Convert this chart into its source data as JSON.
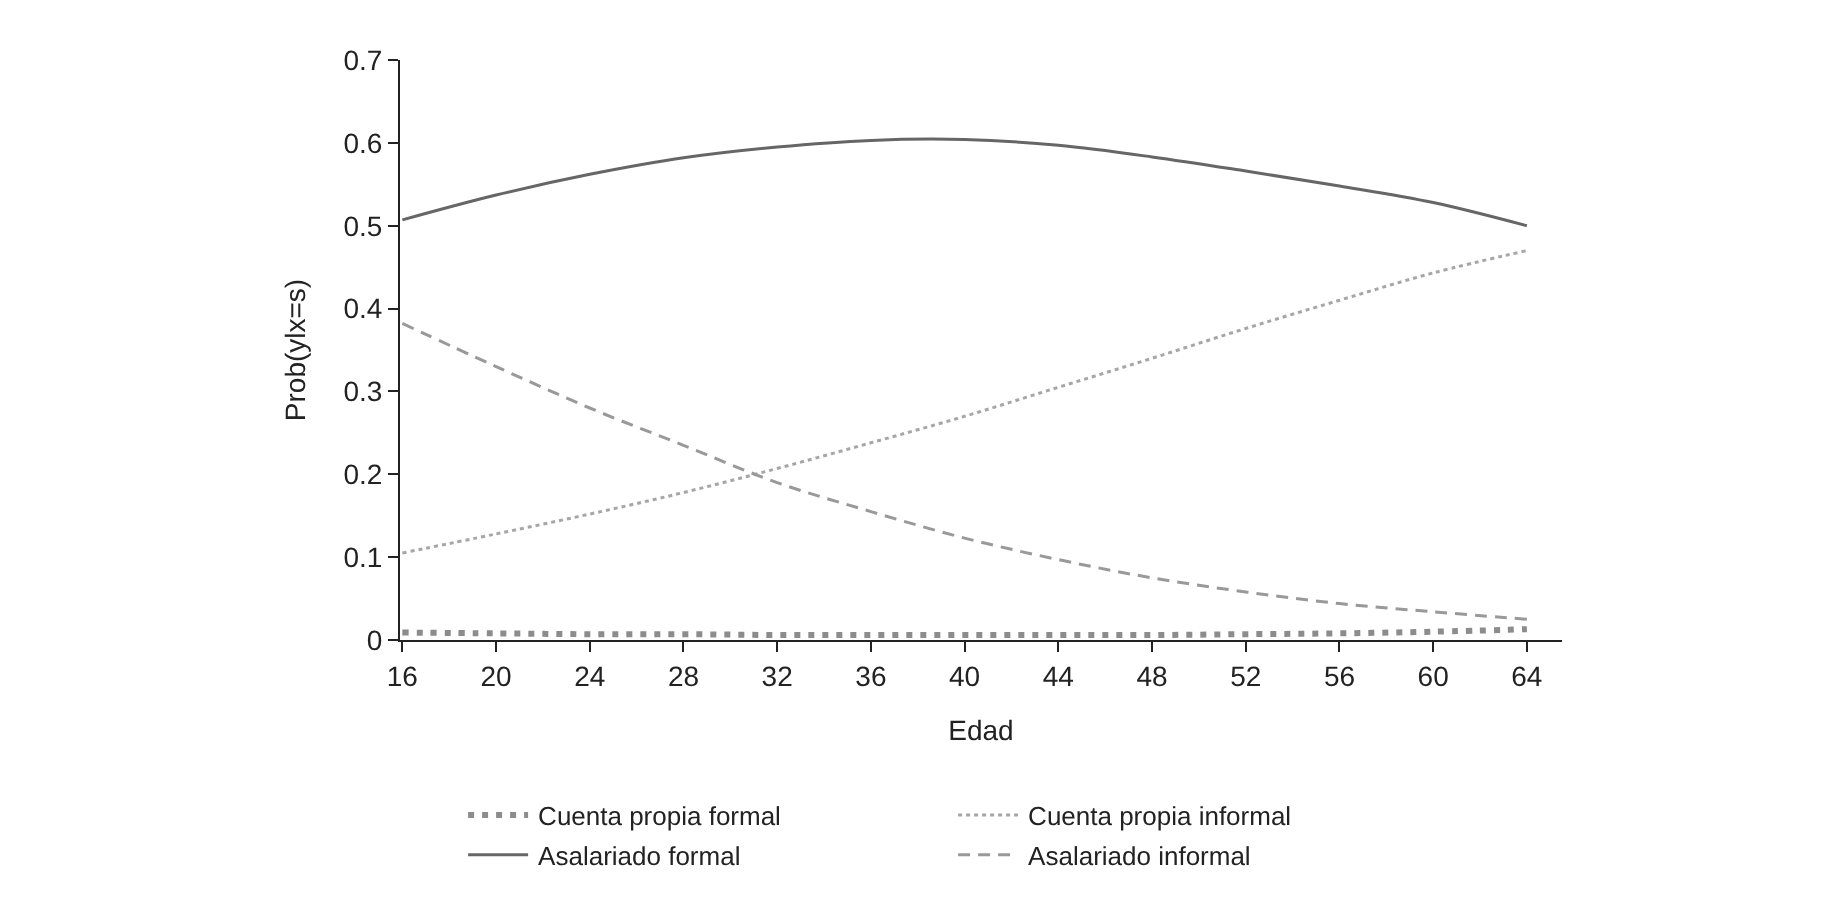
{
  "chart_data": {
    "type": "line",
    "xlabel": "Edad",
    "ylabel": "Prob(ylx=s)",
    "x": [
      16,
      20,
      24,
      28,
      32,
      36,
      40,
      44,
      48,
      52,
      56,
      60,
      64
    ],
    "xlim": [
      15.9,
      65.5
    ],
    "xticks": [
      16,
      20,
      24,
      28,
      32,
      36,
      40,
      44,
      48,
      52,
      56,
      60,
      64
    ],
    "ylim": [
      0,
      0.7
    ],
    "yticks": [
      0,
      0.1,
      0.2,
      0.3,
      0.4,
      0.5,
      0.6,
      0.7
    ],
    "legend": "bottom",
    "marker": "none",
    "series": [
      {
        "name": "Cuenta propia formal",
        "color": "#8c8c8c",
        "line_style": "dotted",
        "values": [
          0.009,
          0.008,
          0.007,
          0.007,
          0.006,
          0.006,
          0.006,
          0.006,
          0.006,
          0.007,
          0.008,
          0.01,
          0.013
        ]
      },
      {
        "name": "Cuenta propia informal",
        "color": "#a6a6a6",
        "line_style": "dotted",
        "values": [
          0.105,
          0.128,
          0.152,
          0.178,
          0.207,
          0.238,
          0.27,
          0.305,
          0.34,
          0.376,
          0.41,
          0.443,
          0.47
        ]
      },
      {
        "name": "Asalariado formal",
        "color": "#666666",
        "line_style": "solid",
        "values": [
          0.507,
          0.537,
          0.562,
          0.582,
          0.595,
          0.603,
          0.604,
          0.597,
          0.583,
          0.566,
          0.548,
          0.528,
          0.5
        ]
      },
      {
        "name": "Asalariado informal",
        "color": "#999999",
        "line_style": "dashed",
        "values": [
          0.382,
          0.33,
          0.28,
          0.235,
          0.19,
          0.155,
          0.123,
          0.097,
          0.075,
          0.058,
          0.044,
          0.034,
          0.025
        ]
      }
    ]
  }
}
